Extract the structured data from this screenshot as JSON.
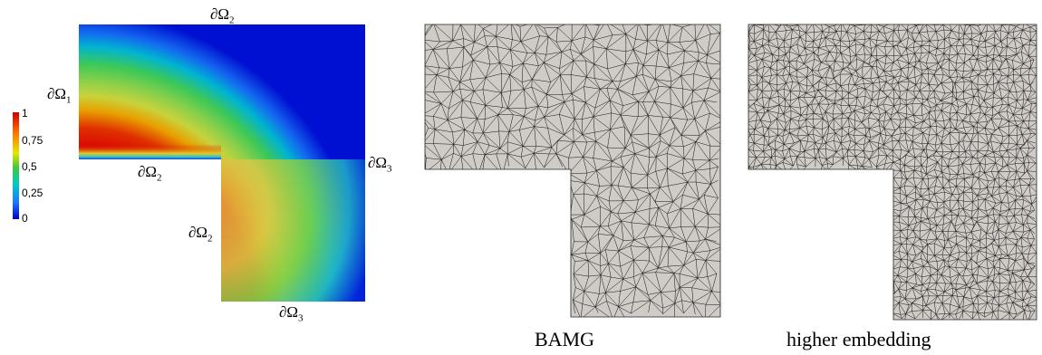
{
  "field_panel": {
    "boundary_labels": {
      "top": "∂Ω",
      "top_sub": "2",
      "left": "∂Ω",
      "left_sub": "1",
      "inner_horizontal": "∂Ω",
      "inner_horizontal_sub": "2",
      "inner_vertical": "∂Ω",
      "inner_vertical_sub": "2",
      "right": "∂Ω",
      "right_sub": "3",
      "bottom": "∂Ω",
      "bottom_sub": "3"
    },
    "colorbar": {
      "ticks": [
        "1",
        "0,75",
        "0,5",
        "0,25",
        "0"
      ],
      "colors": [
        "#cc0000",
        "#ff6a00",
        "#e6e600",
        "#3ec83e",
        "#00c8c8",
        "#1e78ff",
        "#0000c8"
      ]
    }
  },
  "mesh_panels": [
    {
      "caption": "BAMG"
    },
    {
      "caption": "higher embedding"
    }
  ],
  "colors": {
    "mesh_fill": "#cfcbc6",
    "mesh_line": "#111111"
  }
}
